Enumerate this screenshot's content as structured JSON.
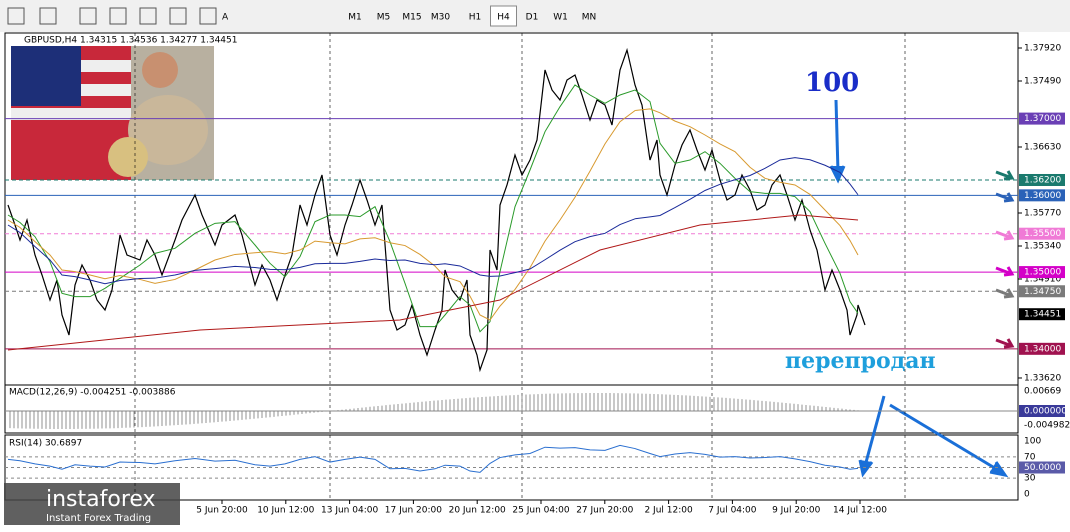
{
  "toolbar": {
    "tool_text": "A",
    "timeframes": [
      "M1",
      "M5",
      "M15",
      "M30",
      "H1",
      "H4",
      "D1",
      "W1",
      "MN"
    ],
    "active": "H4"
  },
  "chart": {
    "header": "GBPUSD,H4  1.34315 1.34536 1.34277 1.34451",
    "price_labels": [
      "1.37920",
      "1.37490",
      "1.36630",
      "1.35770",
      "1.35340",
      "1.34910",
      "1.33620"
    ],
    "levels": [
      {
        "label": "1.37000",
        "color": "#6a3fb5"
      },
      {
        "label": "1.36200",
        "color": "#1a7a6e"
      },
      {
        "label": "1.36000",
        "color": "#2a62b8"
      },
      {
        "label": "1.35500",
        "color": "#f07ad6"
      },
      {
        "label": "1.35000",
        "color": "#d400c8"
      },
      {
        "label": "1.34750",
        "color": "#7a7a7a"
      },
      {
        "label": "1.34451",
        "color": "#000000"
      },
      {
        "label": "1.34000",
        "color": "#a0124f"
      }
    ],
    "dates": [
      "5 Jun 20:00",
      "10 Jun 12:00",
      "13 Jun 04:00",
      "17 Jun 20:00",
      "20 Jun 12:00",
      "25 Jun 04:00",
      "27 Jun 20:00",
      "2 Jul 12:00",
      "7 Jul 04:00",
      "9 Jul 20:00",
      "14 Jul 12:00"
    ],
    "annotations": {
      "top": "100",
      "bottom": "перепродан"
    }
  },
  "macd": {
    "label": "MACD(12,26,9) -0.004251 -0.003886",
    "axis": [
      "0.00669",
      "0.000000",
      "-0.004982"
    ]
  },
  "rsi": {
    "label": "RSI(14) 30.6897",
    "axis": [
      "100",
      "70",
      "50.0000",
      "30",
      "0"
    ]
  },
  "logo": {
    "name": "instaforex",
    "tagline": "Instant Forex Trading"
  }
}
